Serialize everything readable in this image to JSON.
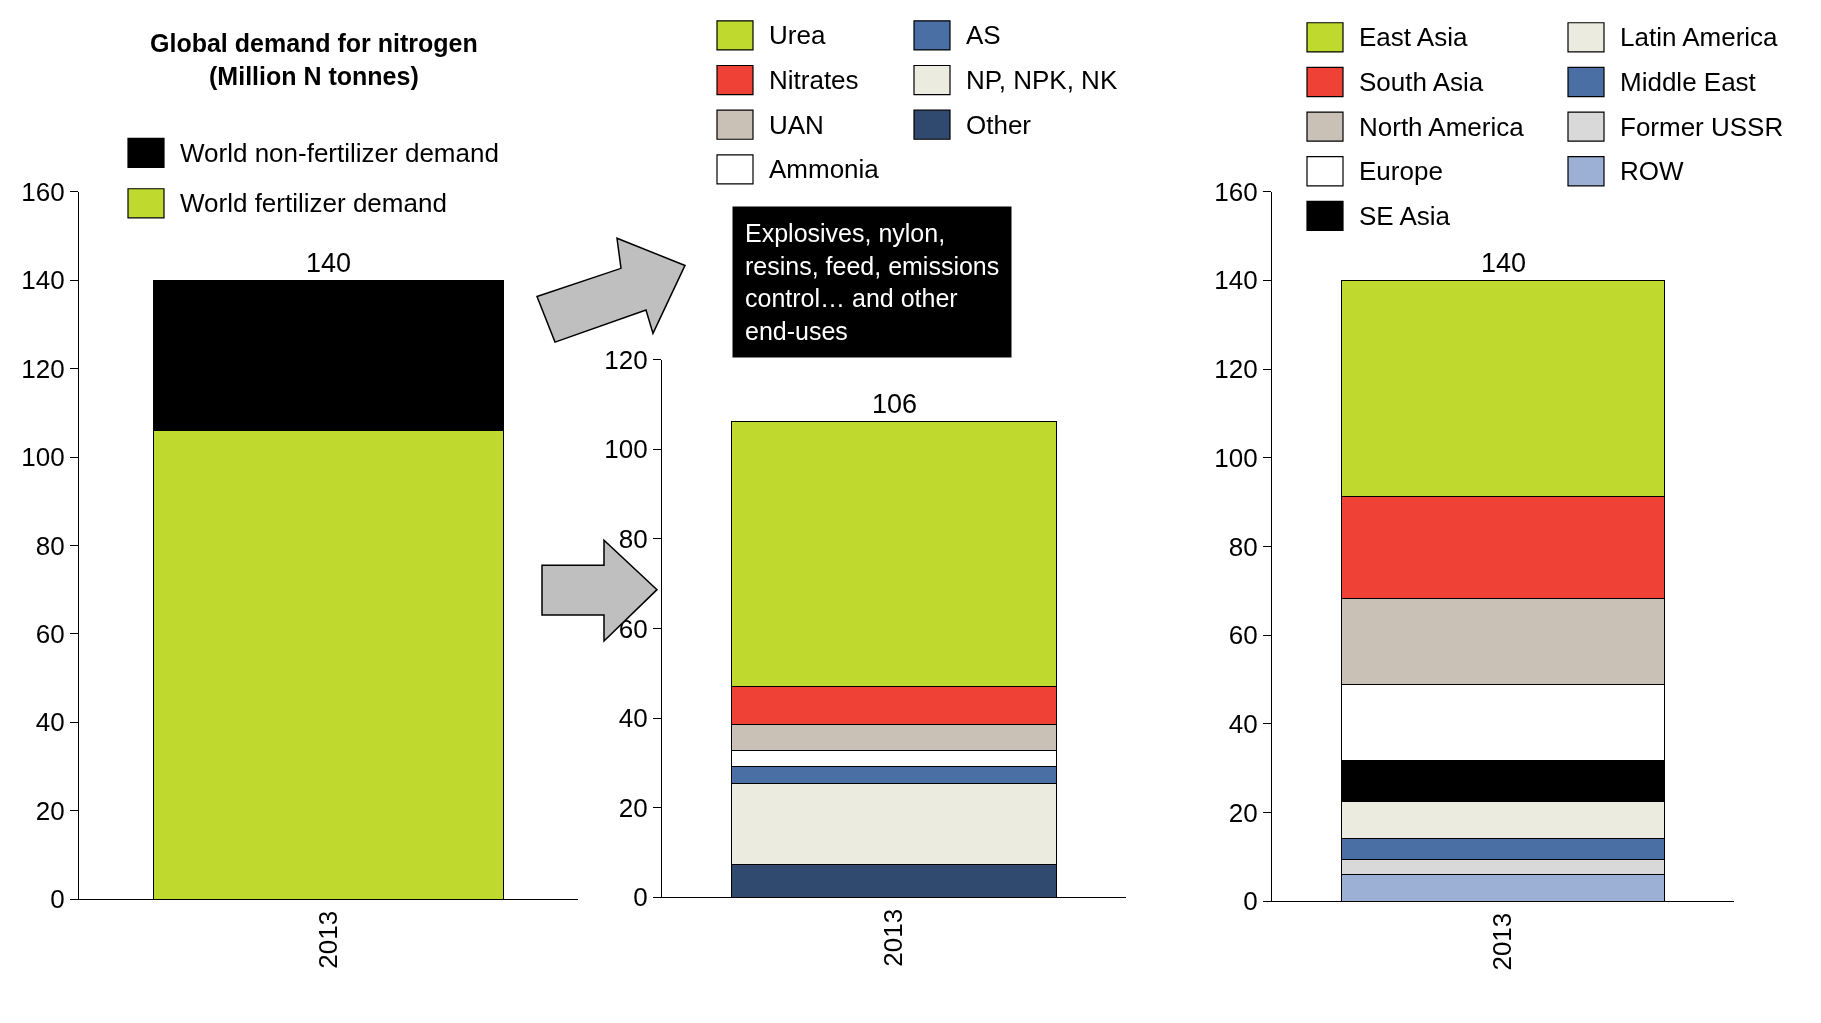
{
  "chart_data": [
    {
      "type": "bar",
      "title": "Global demand for nitrogen\n(Million N tonnes)",
      "categories": [
        "2013"
      ],
      "stacked": true,
      "legend": "top",
      "ylim": [
        0,
        160
      ],
      "yticks": [
        0,
        20,
        40,
        60,
        80,
        100,
        120,
        140,
        160
      ],
      "totals": [
        "140"
      ],
      "series": [
        {
          "name": "World fertilizer demand",
          "color": "#c0d92e",
          "values": [
            106
          ]
        },
        {
          "name": "World non-fertilizer demand",
          "color": "#000000",
          "values": [
            34
          ]
        }
      ]
    },
    {
      "type": "bar",
      "categories": [
        "2013"
      ],
      "stacked": true,
      "legend": "top",
      "ylim": [
        0,
        120
      ],
      "yticks": [
        0,
        20,
        40,
        60,
        80,
        100,
        120
      ],
      "totals": [
        "106"
      ],
      "annotations": [
        "Explosives, nylon,\nresins, feed, emissions\ncontrol… and other\nend-uses"
      ],
      "series": [
        {
          "name": "Other",
          "color": "#2f4a6e",
          "values": [
            7.3
          ]
        },
        {
          "name": "NP, NPK, NK",
          "color": "#ecebe0",
          "values": [
            18.1
          ]
        },
        {
          "name": "AS",
          "color": "#4a6fa5",
          "values": [
            3.8
          ]
        },
        {
          "name": "Ammonia",
          "color": "#ffffff",
          "values": [
            3.5
          ]
        },
        {
          "name": "UAN",
          "color": "#c9c0b6",
          "values": [
            5.8
          ]
        },
        {
          "name": "Nitrates",
          "color": "#ef4136",
          "values": [
            8.5
          ]
        },
        {
          "name": "Urea",
          "color": "#c0d92e",
          "values": [
            59.2
          ]
        }
      ]
    },
    {
      "type": "bar",
      "categories": [
        "2013"
      ],
      "stacked": true,
      "legend": "top",
      "ylim": [
        0,
        160
      ],
      "yticks": [
        0,
        20,
        40,
        60,
        80,
        100,
        120,
        140,
        160
      ],
      "totals": [
        "140"
      ],
      "series": [
        {
          "name": "ROW",
          "color": "#9bb0d4",
          "values": [
            6.1
          ]
        },
        {
          "name": "Former USSR",
          "color": "#d9d9d9",
          "values": [
            3.3
          ]
        },
        {
          "name": "Middle East",
          "color": "#4a6fa5",
          "values": [
            4.8
          ]
        },
        {
          "name": "Latin America",
          "color": "#ecebe0",
          "values": [
            8.2
          ]
        },
        {
          "name": "SE Asia",
          "color": "#000000",
          "values": [
            9.4
          ]
        },
        {
          "name": "Europe",
          "color": "#ffffff",
          "values": [
            17.1
          ]
        },
        {
          "name": "North America",
          "color": "#c9c0b6",
          "values": [
            19.3
          ]
        },
        {
          "name": "South Asia",
          "color": "#ef4136",
          "values": [
            23.1
          ]
        },
        {
          "name": "East Asia",
          "color": "#c0d92e",
          "values": [
            48.7
          ]
        }
      ]
    }
  ]
}
